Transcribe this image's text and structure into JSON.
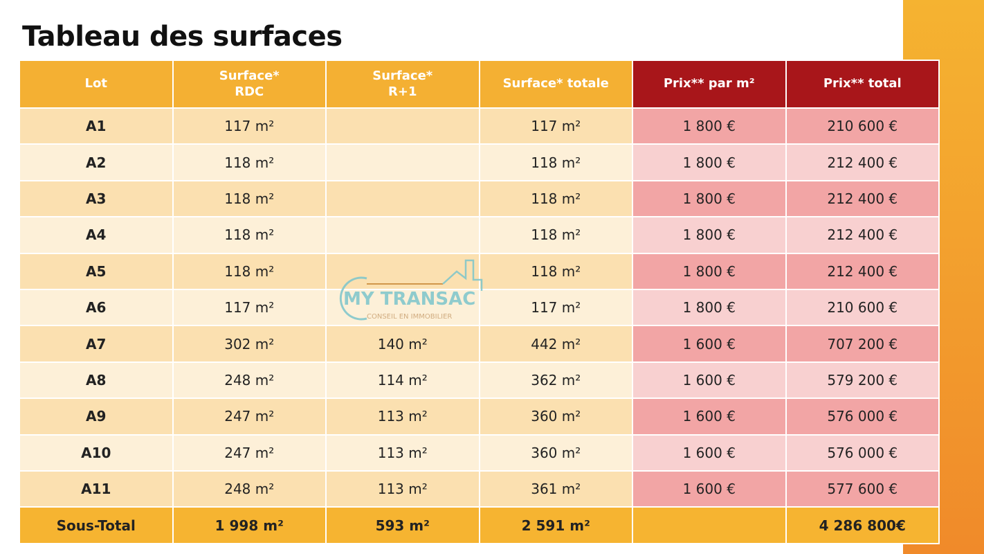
{
  "title": "Tableau des surfaces",
  "headers": [
    "Lot",
    "Surface*\nRDC",
    "Surface*\nR+1",
    "Surface* totale",
    "Prix** par m²",
    "Prix** total"
  ],
  "rows": [
    [
      "A1",
      "117 m²",
      "",
      "117 m²",
      "1 800 €",
      "210 600 €"
    ],
    [
      "A2",
      "118 m²",
      "",
      "118 m²",
      "1 800 €",
      "212 400 €"
    ],
    [
      "A3",
      "118 m²",
      "",
      "118 m²",
      "1 800 €",
      "212 400 €"
    ],
    [
      "A4",
      "118 m²",
      "",
      "118 m²",
      "1 800 €",
      "212 400 €"
    ],
    [
      "A5",
      "118 m²",
      "",
      "118 m²",
      "1 800 €",
      "212 400 €"
    ],
    [
      "A6",
      "117 m²",
      "",
      "117 m²",
      "1 800 €",
      "210 600 €"
    ],
    [
      "A7",
      "302 m²",
      "140 m²",
      "442 m²",
      "1 600 €",
      "707 200 €"
    ],
    [
      "A8",
      "248 m²",
      "114 m²",
      "362 m²",
      "1 600 €",
      "579 200 €"
    ],
    [
      "A9",
      "247 m²",
      "113 m²",
      "360 m²",
      "1 600 €",
      "576 000 €"
    ],
    [
      "A10",
      "247 m²",
      "113 m²",
      "360 m²",
      "1 600 €",
      "576 000 €"
    ],
    [
      "A11",
      "248 m²",
      "113 m²",
      "361 m²",
      "1 600 €",
      "577 600 €"
    ]
  ],
  "subtotal": [
    "Sous-Total",
    "1 998 m²",
    "593 m²",
    "2 591 m²",
    "",
    "4 286 800€"
  ],
  "watermark": {
    "brand": "MY TRANSAC",
    "tagline": "CONSEIL EN IMMOBILIER"
  },
  "colors": {
    "header": "#f4b033",
    "header_price": "#a8161a",
    "accent": "#f08a2a"
  }
}
